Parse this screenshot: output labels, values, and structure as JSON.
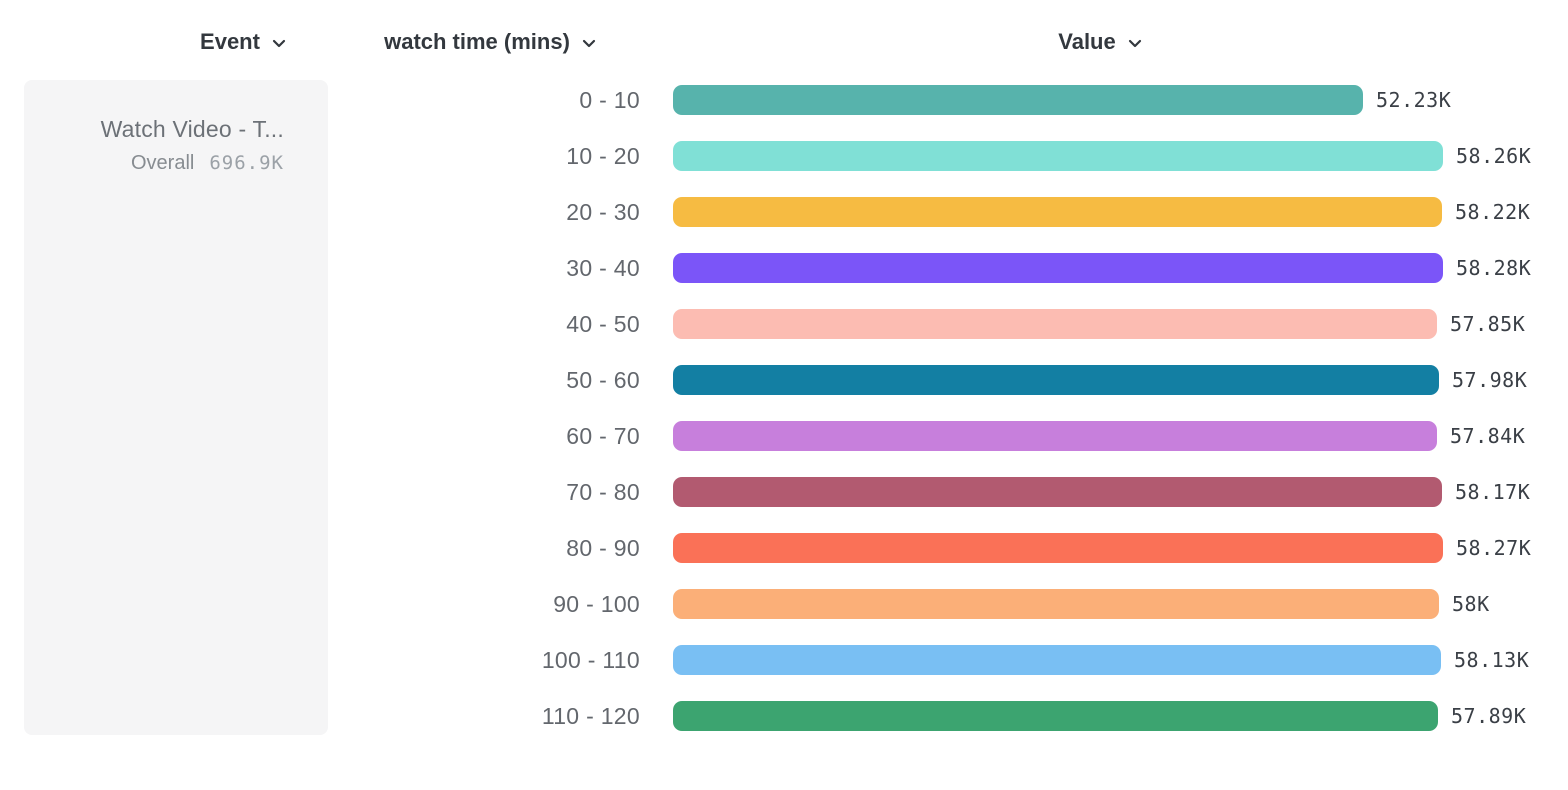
{
  "header": {
    "event_label": "Event",
    "breakdown_label": "watch time (mins)",
    "value_label": "Value"
  },
  "event_card": {
    "event_name": "Watch Video - T...",
    "overall_label": "Overall",
    "overall_value": "696.9K"
  },
  "chart_data": {
    "type": "bar",
    "orientation": "horizontal",
    "title": "",
    "xlabel": "Value",
    "ylabel": "watch time (mins)",
    "xlim": [
      0,
      58280
    ],
    "grid": false,
    "legend": false,
    "categories": [
      "0 - 10",
      "10 - 20",
      "20 - 30",
      "30 - 40",
      "40 - 50",
      "50 - 60",
      "60 - 70",
      "70 - 80",
      "80 - 90",
      "90 - 100",
      "100 - 110",
      "110 - 120"
    ],
    "values": [
      52230,
      58260,
      58220,
      58280,
      57850,
      57980,
      57840,
      58170,
      58270,
      58000,
      58130,
      57890
    ],
    "display_values": [
      "52.23K",
      "58.26K",
      "58.22K",
      "58.28K",
      "57.85K",
      "57.98K",
      "57.84K",
      "58.17K",
      "58.27K",
      "58K",
      "58.13K",
      "57.89K"
    ],
    "colors": [
      "#57b3ac",
      "#80e0d6",
      "#f6bb42",
      "#7b55f8",
      "#fcbcb2",
      "#137fa3",
      "#c77fdc",
      "#b25a70",
      "#fa7157",
      "#fbaf78",
      "#79bff3",
      "#3ca470"
    ]
  },
  "layout_colors": {
    "card_background": "#f5f5f6",
    "header_text": "#33383e",
    "category_text": "#63676d",
    "value_text": "#3a3f46"
  }
}
